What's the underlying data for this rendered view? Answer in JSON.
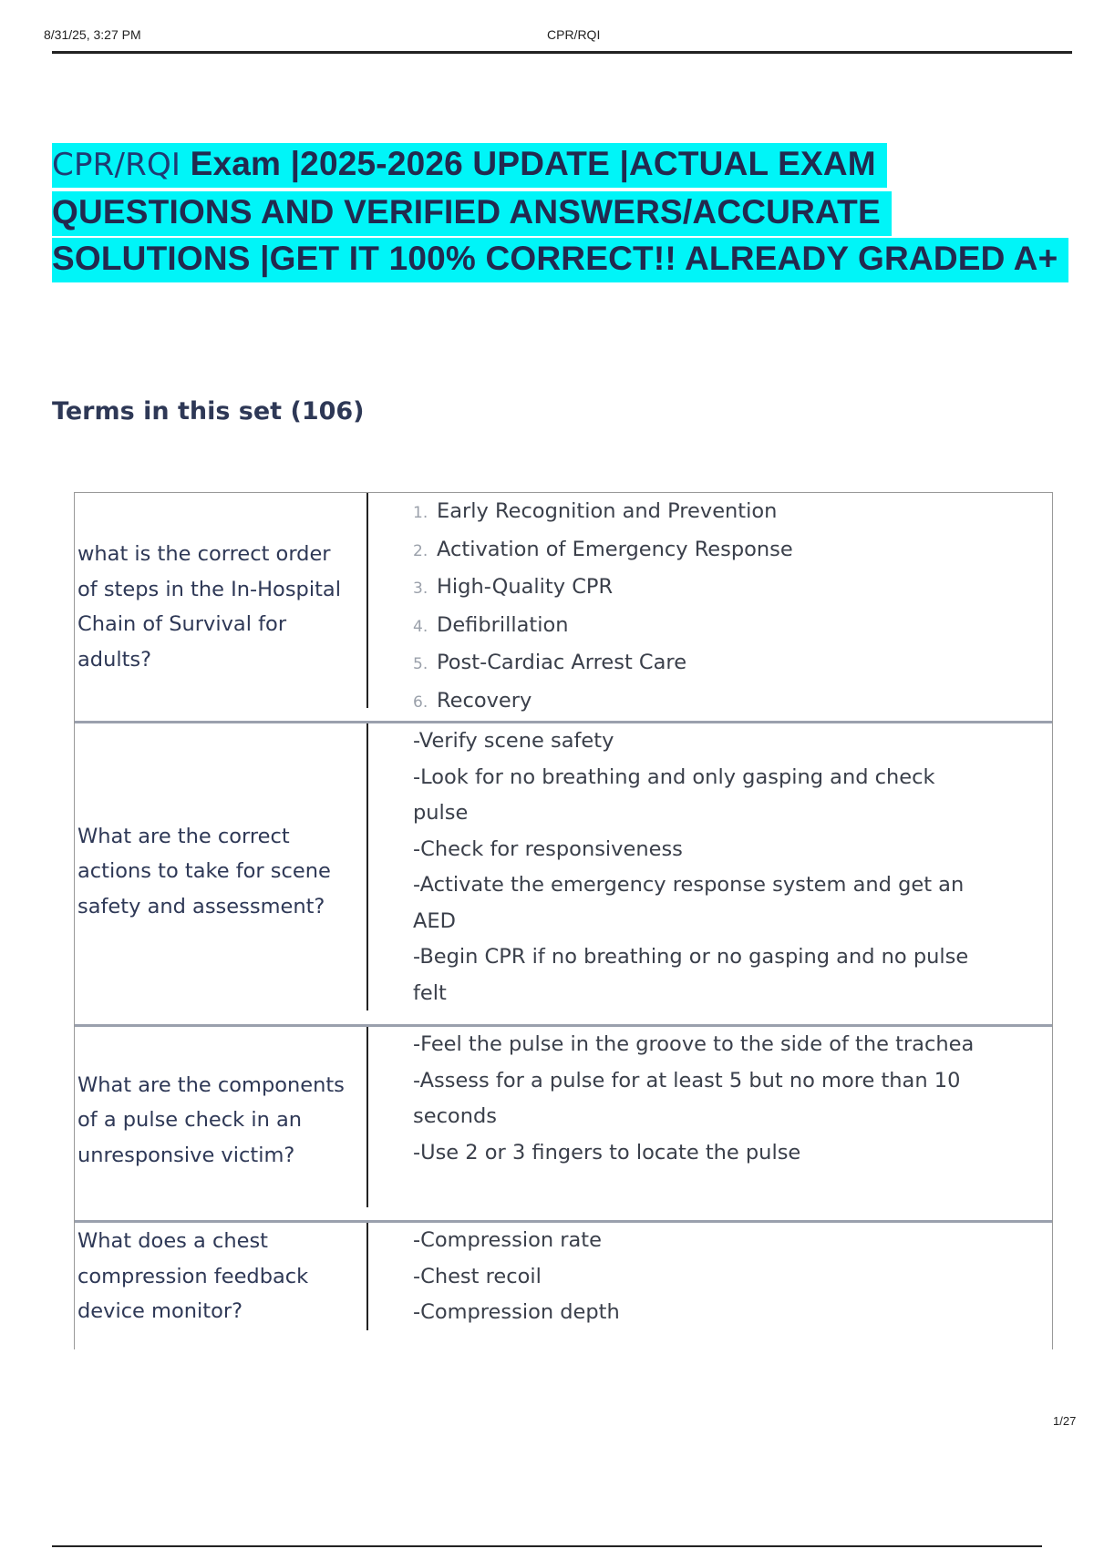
{
  "header": {
    "datetime": "8/31/25, 3:27 PM",
    "doc_title": "CPR/RQI"
  },
  "title": {
    "prefix": "CPR/RQI",
    "text": " Exam |2025-2026 UPDATE |ACTUAL EXAM QUESTIONS AND VERIFIED ANSWERS/ACCURATE SOLUTIONS |GET IT 100% CORRECT!! ALREADY GRADED A+",
    "highlight_color": "#00f5f8"
  },
  "terms_heading": "Terms in this set (106)",
  "cards": [
    {
      "question": "what is the correct order of steps in the In-Hospital Chain of Survival for adults?",
      "answer_list": [
        {
          "n": "1.",
          "text": "Early Recognition and Prevention"
        },
        {
          "n": "2.",
          "text": "Activation of Emergency Response"
        },
        {
          "n": "3.",
          "text": "High-Quality CPR"
        },
        {
          "n": "4.",
          "text": "Defibrillation"
        },
        {
          "n": "5.",
          "text": "Post-Cardiac Arrest Care"
        },
        {
          "n": "6.",
          "text": "Recovery"
        }
      ]
    },
    {
      "question": "What are the correct actions to take for scene safety and assessment?",
      "answer_lines": [
        "-Verify scene safety",
        "-Look for no breathing and only gasping and check pulse",
        "-Check for responsiveness",
        "-Activate the emergency response system and get an AED",
        "-Begin CPR if no breathing or no gasping and no pulse felt"
      ]
    },
    {
      "question": "What are the components of a pulse check in an unresponsive victim?",
      "answer_lines": [
        "-Feel the pulse in the groove to the side of the trachea",
        "-Assess for a pulse for at least 5 but no more than 10 seconds",
        "-Use 2 or 3 fingers to locate the pulse"
      ]
    },
    {
      "question": "What does a chest compression feedback device monitor?",
      "answer_lines": [
        "-Compression rate",
        "-Chest recoil",
        "-Compression depth"
      ]
    }
  ],
  "page_number": "1/27"
}
